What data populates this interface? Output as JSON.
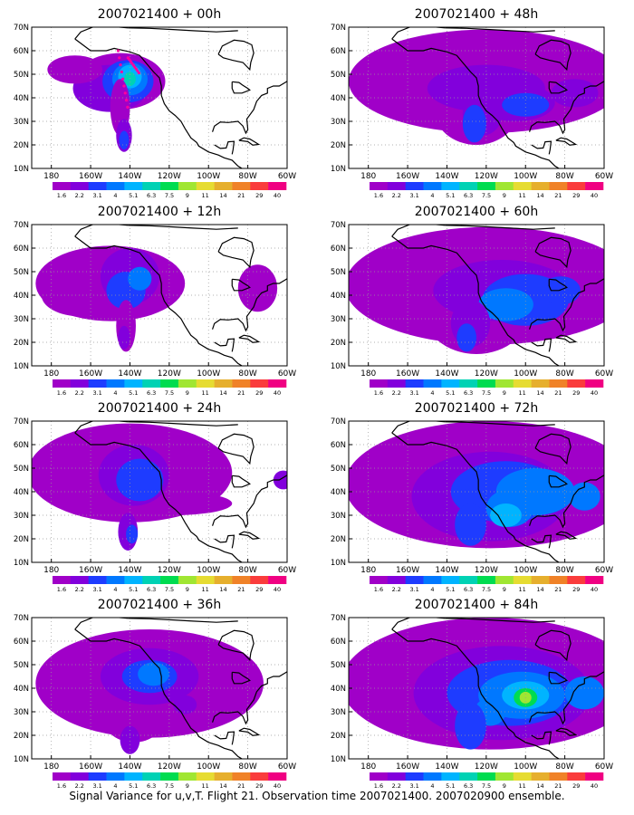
{
  "panels": [
    {
      "title": "2007021400 + 00h",
      "lead_hours": 0
    },
    {
      "title": "2007021400 + 12h",
      "lead_hours": 12
    },
    {
      "title": "2007021400 + 24h",
      "lead_hours": 24
    },
    {
      "title": "2007021400 + 36h",
      "lead_hours": 36
    },
    {
      "title": "2007021400 + 48h",
      "lead_hours": 48
    },
    {
      "title": "2007021400 + 60h",
      "lead_hours": 60
    },
    {
      "title": "2007021400 + 72h",
      "lead_hours": 72
    },
    {
      "title": "2007021400 + 84h",
      "lead_hours": 84
    }
  ],
  "axes": {
    "lat_labels": [
      "10N",
      "20N",
      "30N",
      "40N",
      "50N",
      "60N",
      "70N"
    ],
    "lon_labels": [
      "180",
      "160W",
      "140W",
      "120W",
      "100W",
      "80W",
      "60W"
    ],
    "lat_range": [
      10,
      70
    ],
    "lon_range": [
      -190,
      -60
    ]
  },
  "colorbar": {
    "labels": [
      "1.6",
      "2.2",
      "3.1",
      "4",
      "5.1",
      "6.3",
      "7.5",
      "9",
      "11",
      "14",
      "21",
      "29",
      "40"
    ],
    "colors": [
      "#a000c8",
      "#8200dc",
      "#1e3cff",
      "#0078ff",
      "#00b4ff",
      "#00d2b4",
      "#00dc50",
      "#a0e632",
      "#e6dc32",
      "#e6af2d",
      "#f08228",
      "#fa3c3c",
      "#f00082"
    ]
  },
  "caption": "Signal Variance for u,v,T. Flight 21. Observation time 2007021400. 2007020900 ensemble.",
  "annotations": {
    "flight_track_color": "#ff00a0"
  }
}
